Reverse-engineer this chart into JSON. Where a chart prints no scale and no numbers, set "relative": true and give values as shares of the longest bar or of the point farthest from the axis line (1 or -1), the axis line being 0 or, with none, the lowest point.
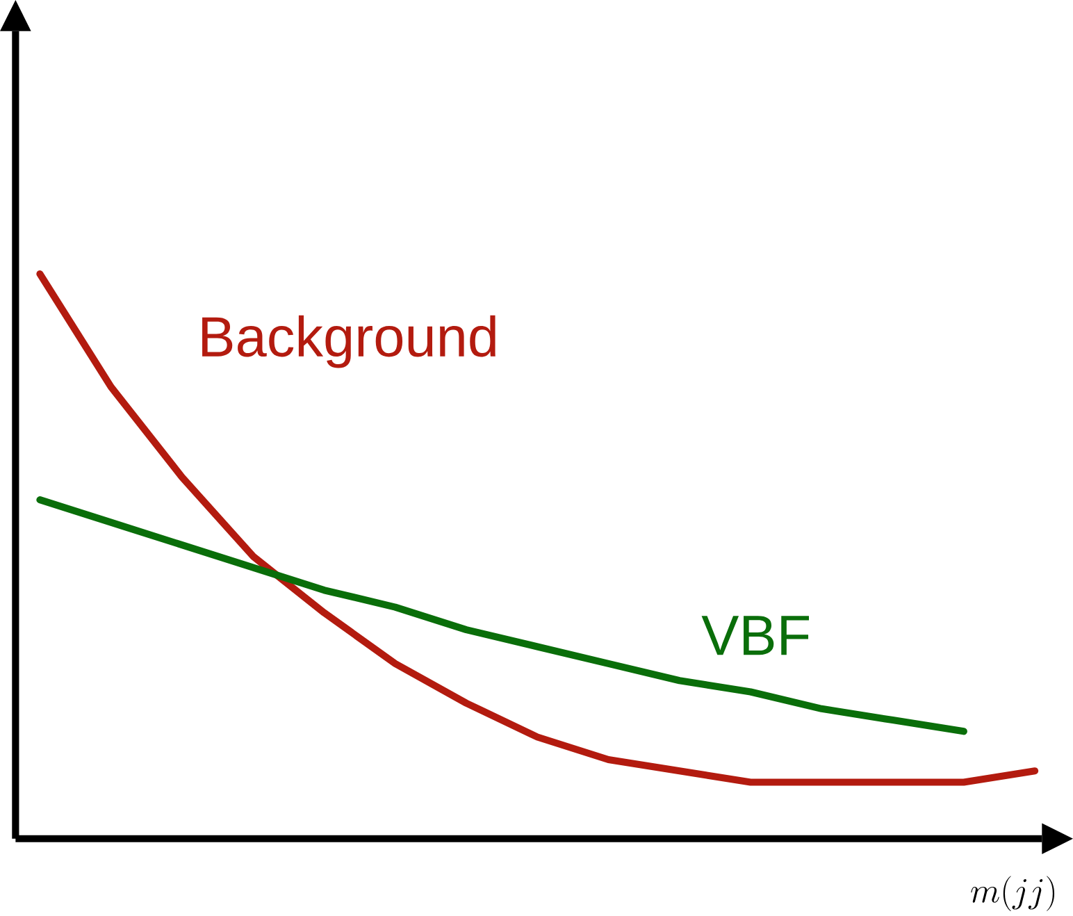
{
  "chart_data": {
    "type": "line",
    "relative": true,
    "xlabel": "m(jj)",
    "categories": [
      null,
      null,
      null,
      null,
      null,
      null,
      null,
      null,
      null,
      null,
      null,
      null,
      null,
      null,
      null
    ],
    "series": [
      {
        "name": "Background",
        "color": "#b31b0f",
        "values": [
          1,
          0.8,
          0.64,
          0.5,
          0.4,
          0.31,
          0.24,
          0.18,
          0.14,
          0.12,
          0.1,
          0.1,
          0.1,
          0.1,
          0.12
        ]
      },
      {
        "name": "VBF",
        "color": "#0a6e0a",
        "values": [
          0.6,
          0.56,
          0.52,
          0.48,
          0.44,
          0.41,
          0.37,
          0.34,
          0.31,
          0.28,
          0.26,
          0.23,
          0.21,
          0.19,
          null
        ]
      }
    ]
  }
}
